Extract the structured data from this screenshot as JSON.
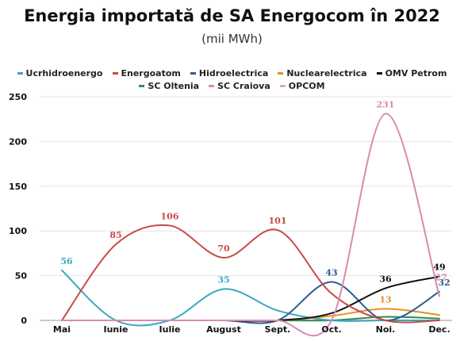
{
  "chart_data": {
    "type": "line",
    "title": "Energia importată de SA Energocom în 2022",
    "subtitle": "(mii MWh)",
    "xlabel": "",
    "ylabel": "",
    "categories": [
      "Mai",
      "Iunie",
      "Iulie",
      "August",
      "Sept.",
      "Oct.",
      "Noi.",
      "Dec."
    ],
    "ylim": [
      0,
      250
    ],
    "yticks": [
      0,
      50,
      100,
      150,
      200,
      250
    ],
    "grid": "horizontal",
    "legend_position": "top",
    "series": [
      {
        "name": "Ucrhidroenergo",
        "color": "#3aa8bf",
        "values": [
          56,
          0,
          0,
          35,
          11,
          0,
          0,
          0
        ],
        "labels": [
          {
            "index": 0,
            "text": "56"
          },
          {
            "index": 3,
            "text": "35"
          }
        ]
      },
      {
        "name": "Energoatom",
        "color": "#c94a45",
        "values": [
          0,
          85,
          106,
          70,
          101,
          30,
          0,
          0
        ],
        "labels": [
          {
            "index": 1,
            "text": "85"
          },
          {
            "index": 2,
            "text": "106"
          },
          {
            "index": 3,
            "text": "70"
          },
          {
            "index": 4,
            "text": "101"
          }
        ]
      },
      {
        "name": "Hidroelectrica",
        "color": "#2e5d8c",
        "values": [
          0,
          0,
          0,
          0,
          0,
          43,
          0,
          32
        ],
        "labels": [
          {
            "index": 5,
            "text": "43"
          },
          {
            "index": 7,
            "text": "32"
          }
        ]
      },
      {
        "name": "Nuclearelectrica",
        "color": "#e8901f",
        "values": [
          0,
          0,
          0,
          0,
          0,
          5,
          13,
          6
        ],
        "labels": [
          {
            "index": 6,
            "text": "13"
          }
        ]
      },
      {
        "name": "OMV Petrom",
        "color": "#111111",
        "values": [
          0,
          0,
          0,
          0,
          0,
          8,
          36,
          49
        ],
        "labels": [
          {
            "index": 6,
            "text": "36"
          },
          {
            "index": 7,
            "text": "49"
          }
        ]
      },
      {
        "name": "SC Oltenia",
        "color": "#2e8b57",
        "values": [
          0,
          0,
          0,
          0,
          0,
          0,
          4,
          2
        ],
        "labels": []
      },
      {
        "name": "SC Craiova",
        "color": "#d98bb0",
        "values": [
          0,
          0,
          0,
          0,
          0,
          0,
          231,
          27
        ],
        "labels": [
          {
            "index": 6,
            "text": "231"
          },
          {
            "index": 7,
            "text": "27"
          }
        ]
      },
      {
        "name": "OPCOM",
        "color": "#e3a3cf",
        "values": [
          0,
          0,
          0,
          0,
          0,
          0,
          0,
          0
        ],
        "labels": []
      }
    ]
  }
}
